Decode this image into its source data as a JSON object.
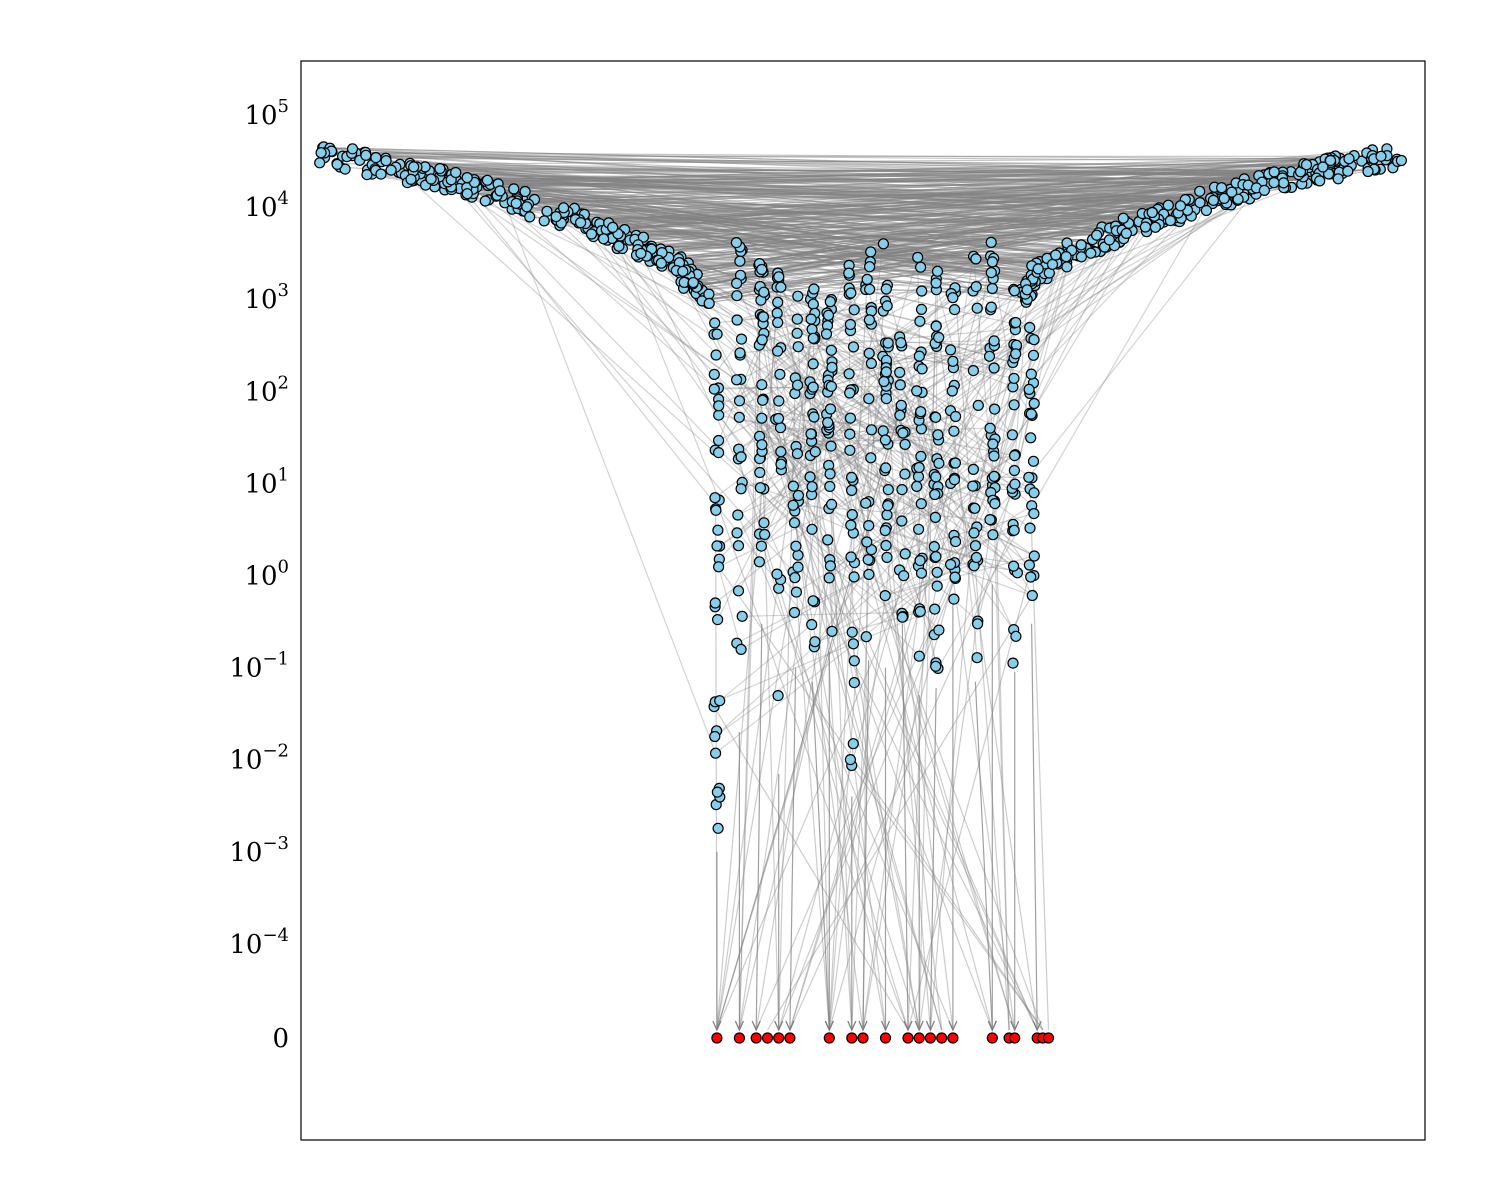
{
  "chart_data": {
    "type": "scatter",
    "title": "",
    "xlabel": "",
    "ylabel": "",
    "y_scale": "symlog",
    "y_ticks": [
      {
        "value": 100000,
        "base": "10",
        "exp": "5"
      },
      {
        "value": 10000,
        "base": "10",
        "exp": "4"
      },
      {
        "value": 1000,
        "base": "10",
        "exp": "3"
      },
      {
        "value": 100,
        "base": "10",
        "exp": "2"
      },
      {
        "value": 10,
        "base": "10",
        "exp": "1"
      },
      {
        "value": 1,
        "base": "10",
        "exp": "0"
      },
      {
        "value": 0.1,
        "base": "10",
        "exp": "−1"
      },
      {
        "value": 0.01,
        "base": "10",
        "exp": "−2"
      },
      {
        "value": 0.001,
        "base": "10",
        "exp": "−3"
      },
      {
        "value": 0.0001,
        "base": "10",
        "exp": "−4"
      },
      {
        "value": 0,
        "base": "0",
        "exp": ""
      }
    ],
    "x_ticks_shown": false,
    "grid": false,
    "legend": "none",
    "colors": {
      "node": "#87ceeb",
      "terminal_node": "#ff0000",
      "node_edge": "#000000",
      "edge": "#808080"
    },
    "series": [
      {
        "role": "left-arm",
        "points": [
          [
            0.02,
            40000
          ],
          [
            0.04,
            33000
          ],
          [
            0.06,
            30000
          ],
          [
            0.08,
            27000
          ],
          [
            0.1,
            24000
          ],
          [
            0.12,
            21000
          ],
          [
            0.14,
            18000
          ],
          [
            0.16,
            15500
          ],
          [
            0.18,
            13000
          ],
          [
            0.2,
            11000
          ],
          [
            0.22,
            9000
          ],
          [
            0.24,
            7500
          ],
          [
            0.26,
            6000
          ],
          [
            0.28,
            4800
          ],
          [
            0.3,
            3800
          ],
          [
            0.32,
            2900
          ],
          [
            0.34,
            2100
          ],
          [
            0.35,
            1500
          ],
          [
            0.36,
            1000
          ]
        ]
      },
      {
        "role": "right-arm",
        "points": [
          [
            0.64,
            1000
          ],
          [
            0.65,
            1500
          ],
          [
            0.66,
            2100
          ],
          [
            0.68,
            2900
          ],
          [
            0.7,
            3800
          ],
          [
            0.72,
            4800
          ],
          [
            0.74,
            6000
          ],
          [
            0.76,
            7500
          ],
          [
            0.78,
            9000
          ],
          [
            0.8,
            11000
          ],
          [
            0.82,
            13000
          ],
          [
            0.84,
            15500
          ],
          [
            0.86,
            18000
          ],
          [
            0.88,
            21000
          ],
          [
            0.9,
            24000
          ],
          [
            0.92,
            27000
          ],
          [
            0.94,
            30000
          ],
          [
            0.96,
            33000
          ],
          [
            0.98,
            37000
          ]
        ]
      },
      {
        "role": "stem-columns",
        "columns": [
          {
            "x": 0.37,
            "top": 800,
            "bottom": 0.001
          },
          {
            "x": 0.39,
            "top": 5000,
            "bottom": 0.02
          },
          {
            "x": 0.41,
            "top": 2500,
            "bottom": 0.3
          },
          {
            "x": 0.425,
            "top": 2000,
            "bottom": 0.007
          },
          {
            "x": 0.44,
            "top": 3000,
            "bottom": 0.1
          },
          {
            "x": 0.455,
            "top": 1500,
            "bottom": 0.07
          },
          {
            "x": 0.47,
            "top": 1200,
            "bottom": 0.15
          },
          {
            "x": 0.49,
            "top": 2500,
            "bottom": 0.004
          },
          {
            "x": 0.505,
            "top": 3500,
            "bottom": 0.12
          },
          {
            "x": 0.52,
            "top": 4000,
            "bottom": 0.1
          },
          {
            "x": 0.535,
            "top": 2000,
            "bottom": 0.3
          },
          {
            "x": 0.55,
            "top": 3500,
            "bottom": 0.05
          },
          {
            "x": 0.565,
            "top": 2500,
            "bottom": 0.06
          },
          {
            "x": 0.58,
            "top": 1800,
            "bottom": 0.5
          },
          {
            "x": 0.6,
            "top": 3000,
            "bottom": 0.07
          },
          {
            "x": 0.615,
            "top": 5000,
            "bottom": 0.8
          },
          {
            "x": 0.635,
            "top": 700,
            "bottom": 0.09
          },
          {
            "x": 0.65,
            "top": 500,
            "bottom": 0.3
          }
        ]
      },
      {
        "role": "terminal-zero",
        "x": [
          0.37,
          0.39,
          0.405,
          0.415,
          0.425,
          0.435,
          0.47,
          0.49,
          0.5,
          0.52,
          0.54,
          0.55,
          0.56,
          0.57,
          0.58,
          0.615,
          0.63,
          0.635,
          0.655,
          0.66,
          0.665
        ],
        "y": 0
      }
    ]
  }
}
